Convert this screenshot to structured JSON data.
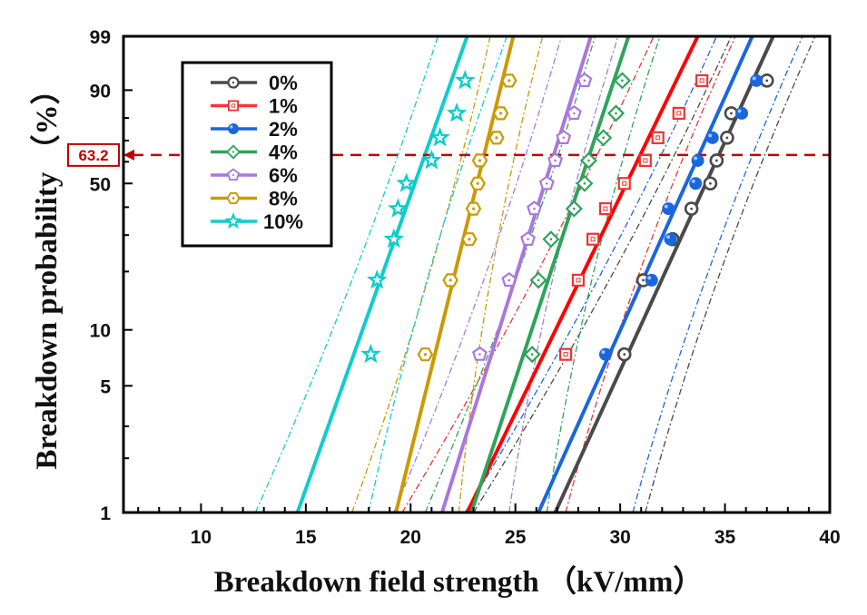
{
  "chart_data": {
    "type": "scatter",
    "subtype": "weibull-probability-plot",
    "title": "",
    "xlabel": "Breakdown field strength （kV/mm）",
    "ylabel": "Breakdown probability （%）",
    "xlim": [
      6.3,
      40
    ],
    "ylim": [
      1,
      99
    ],
    "y_scale": "weibull",
    "xticks": [
      10,
      15,
      20,
      25,
      30,
      35,
      40
    ],
    "xtick_labels": [
      "10",
      "15",
      "20",
      "25",
      "30",
      "35",
      "40"
    ],
    "yticks": [
      1,
      5,
      10,
      50,
      90,
      99
    ],
    "ytick_labels": [
      "1",
      "5",
      "10",
      "50",
      "90",
      "99"
    ],
    "y_minor_ticks": [
      2,
      3,
      20,
      30,
      40,
      60,
      70,
      80
    ],
    "reference_line": {
      "y": 63.2,
      "label": "63.2",
      "color": "#c00000",
      "style": "dashed"
    },
    "legend_position": "top-left",
    "probabilities": [
      7.4,
      18.1,
      28.7,
      39.4,
      50,
      60.6,
      71.3,
      81.9,
      92.6
    ],
    "series": [
      {
        "name": "0%",
        "color": "#4a4a4a",
        "marker": "circle-open",
        "x": [
          30.2,
          31.1,
          32.5,
          33.4,
          34.3,
          34.6,
          35.1,
          35.3,
          37.0
        ],
        "fit": [
          26.9,
          37.3
        ],
        "ci_lower": [
          23.0,
          35.3
        ],
        "ci_upper": [
          31.2,
          39.3
        ]
      },
      {
        "name": "1%",
        "color": "#ee3333",
        "marker": "square-open",
        "x": [
          27.4,
          28.0,
          28.7,
          29.3,
          30.2,
          31.2,
          31.8,
          32.8,
          33.9
        ],
        "fit": [
          22.7,
          33.7
        ],
        "ci_lower": [
          19.6,
          31.6
        ],
        "ci_upper": [
          27.4,
          35.5
        ]
      },
      {
        "name": "2%",
        "color": "#1a66dd",
        "marker": "sphere",
        "x": [
          29.3,
          31.5,
          32.4,
          32.3,
          33.6,
          33.7,
          34.4,
          35.8,
          36.5
        ],
        "fit": [
          26.1,
          36.3
        ],
        "ci_lower": [
          22.6,
          34.6
        ],
        "ci_upper": [
          30.6,
          38.7
        ]
      },
      {
        "name": "4%",
        "color": "#2ea45a",
        "marker": "diamond-open",
        "x": [
          25.8,
          26.1,
          26.7,
          27.8,
          28.3,
          28.5,
          29.2,
          29.8,
          30.1
        ],
        "fit": [
          22.9,
          30.4
        ],
        "ci_lower": [
          20.7,
          28.8
        ],
        "ci_upper": [
          26.5,
          31.9
        ]
      },
      {
        "name": "6%",
        "color": "#aa77dd",
        "marker": "pentagon-open",
        "x": [
          23.3,
          24.7,
          25.6,
          25.9,
          26.5,
          26.9,
          27.3,
          27.8,
          28.3
        ],
        "fit": [
          21.5,
          28.6
        ],
        "ci_lower": [
          19.2,
          27.2
        ],
        "ci_upper": [
          24.7,
          29.9
        ]
      },
      {
        "name": "8%",
        "color": "#cc9900",
        "marker": "hexagon-open",
        "x": [
          20.7,
          21.9,
          22.8,
          23.0,
          23.2,
          23.3,
          24.1,
          24.3,
          24.7
        ],
        "fit": [
          19.3,
          24.9
        ],
        "ci_lower": [
          17.2,
          23.8
        ],
        "ci_upper": [
          22.3,
          26.3
        ]
      },
      {
        "name": "10%",
        "color": "#11cccc",
        "marker": "star",
        "x": [
          18.1,
          18.4,
          19.2,
          19.4,
          19.8,
          21.0,
          21.4,
          22.2,
          22.6
        ],
        "fit": [
          14.6,
          22.7
        ],
        "ci_lower": [
          12.6,
          21.3
        ],
        "ci_upper": [
          18.0,
          24.6
        ]
      }
    ]
  }
}
